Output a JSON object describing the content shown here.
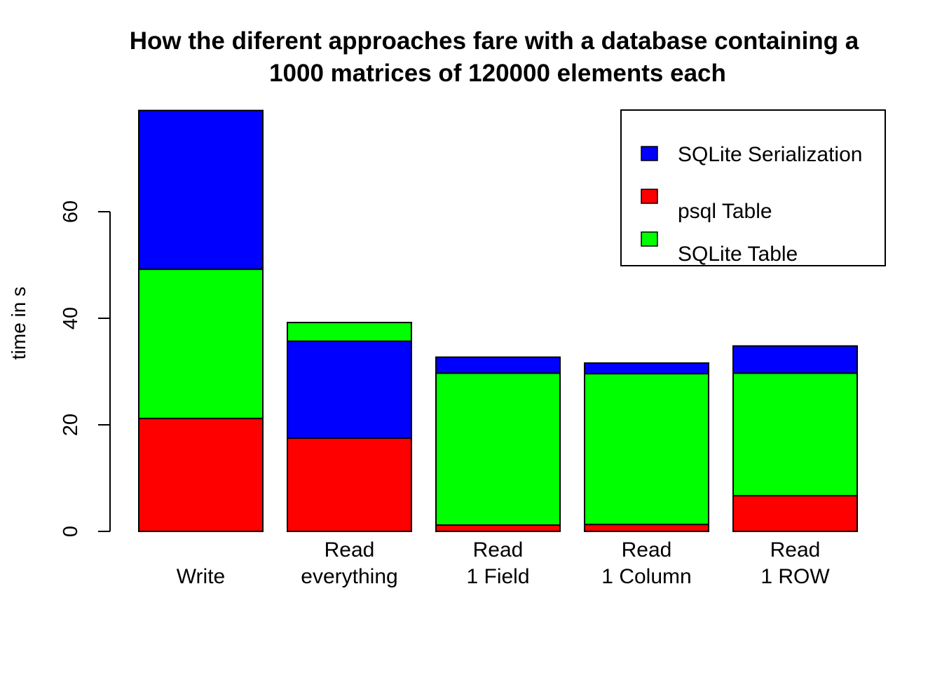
{
  "chart_data": {
    "type": "bar",
    "stacked": true,
    "title": [
      "How the diferent approaches fare with a database containing a",
      "1000 matrices of 120000 elements each"
    ],
    "xlabel": "",
    "ylabel": "time in s",
    "ylim": [
      0,
      79
    ],
    "yticks": [
      "0",
      "20",
      "40",
      "60"
    ],
    "categories": [
      [
        "",
        "Write"
      ],
      [
        "Read",
        "everything"
      ],
      [
        "Read",
        "1 Field"
      ],
      [
        "Read",
        "1 Column"
      ],
      [
        "Read",
        "1 ROW"
      ]
    ],
    "series": [
      {
        "name": "psql Table",
        "color": "#ff0000",
        "values": [
          21.2,
          17.5,
          1.2,
          1.3,
          6.7
        ]
      },
      {
        "name": "SQLite Table",
        "color": "#00ff00",
        "values": [
          28.0,
          0,
          28.5,
          28.3,
          23.0
        ]
      },
      {
        "name": "SQLite Serialization",
        "color": "#0000ff",
        "values": [
          29.8,
          18.2,
          3.0,
          2.0,
          5.1
        ]
      }
    ],
    "extra_segments": [
      {
        "category_index": 1,
        "series": "SQLite Table",
        "color": "#00ff00",
        "value": 3.5,
        "position": "top"
      }
    ],
    "legend": {
      "position": "top-right",
      "entries": [
        {
          "name": "SQLite Serialization",
          "color": "#0000ff"
        },
        {
          "name": "psql Table",
          "color": "#ff0000"
        },
        {
          "name": "SQLite Table",
          "color": "#00ff00"
        }
      ]
    },
    "grid": false
  }
}
